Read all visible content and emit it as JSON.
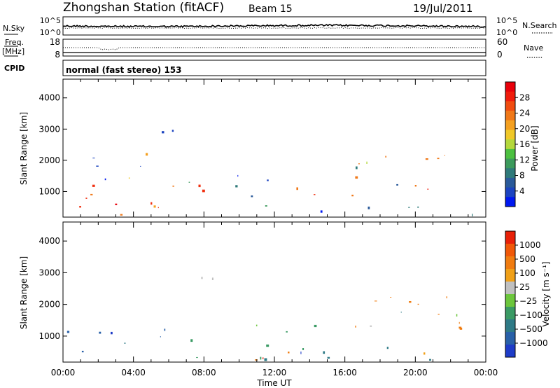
{
  "header": {
    "station": "Zhongshan Station (fitACF)",
    "beam": "Beam 15",
    "date": "19/Jul/2011"
  },
  "left_labels": {
    "nsky": "N.Sky",
    "freq": "Freq.",
    "freq_unit": "[MHz]",
    "cpid": "CPID"
  },
  "right_labels": {
    "nsearch": "N.Search",
    "nave": "Nave"
  },
  "cpid_text": "normal (fast stereo) 153",
  "chart_data": [
    {
      "panel": "noise",
      "type": "line",
      "left_axis": {
        "ticks": [
          "10^5",
          "10^0"
        ]
      },
      "right_axis": {
        "ticks": [
          "10^5",
          "10^0"
        ]
      },
      "series": [
        {
          "name": "N.Sky",
          "style": "solid"
        },
        {
          "name": "N.Search",
          "style": "dotted"
        }
      ]
    },
    {
      "panel": "frequency_nave",
      "type": "line",
      "left_axis": {
        "ticks": [
          "18",
          "8"
        ]
      },
      "right_axis": {
        "ticks": [
          "60",
          "0"
        ]
      },
      "series": [
        {
          "name": "Freq.",
          "style": "solid"
        },
        {
          "name": "Nave",
          "style": "dotted"
        }
      ]
    },
    {
      "panel": "power",
      "type": "heatmap",
      "ylabel": "Slant Range [km]",
      "ylim": [
        180,
        4600
      ],
      "yticks": [
        1000,
        2000,
        3000,
        4000
      ],
      "xlim_hours": [
        0,
        24
      ],
      "colorbar": {
        "label": "Power [dB]",
        "ticks": [
          "4",
          "8",
          "12",
          "16",
          "20",
          "24",
          "28"
        ],
        "colors": [
          "#0018f0",
          "#1c44c0",
          "#2a5a9a",
          "#2f7a7a",
          "#3c9a5c",
          "#4cc040",
          "#b4d83c",
          "#f0c828",
          "#f4a020",
          "#f07818",
          "#f04c10",
          "#f01c0c",
          "#e8000a"
        ]
      },
      "blobs": [
        {
          "t0": 0.0,
          "t1": 14.5,
          "r0": 250,
          "r1": 1300,
          "c": "#f03010"
        },
        {
          "t0": 0.0,
          "t1": 14.5,
          "r0": 1300,
          "r1": 1600,
          "c": "#3c9a5c"
        },
        {
          "t0": 14.5,
          "t1": 24.0,
          "r0": 250,
          "r1": 700,
          "c": "#2f7a7a"
        },
        {
          "t0": 5.5,
          "t1": 9.5,
          "r0": 2700,
          "r1": 3100,
          "c": "#1c44c0"
        },
        {
          "t0": 1.0,
          "t1": 7.5,
          "r0": 1800,
          "r1": 2400,
          "c": "#1c44c0"
        },
        {
          "t0": 16.3,
          "t1": 23.0,
          "r0": 800,
          "r1": 2300,
          "c": "#f07818"
        },
        {
          "t0": 16.3,
          "t1": 17.3,
          "r0": 1600,
          "r1": 2700,
          "c": "#b4d83c"
        }
      ]
    },
    {
      "panel": "velocity",
      "type": "heatmap",
      "ylabel": "Slant Range [km]",
      "ylim": [
        180,
        4600
      ],
      "yticks": [
        1000,
        2000,
        3000,
        4000
      ],
      "xlim_hours": [
        0,
        24
      ],
      "xticks": [
        "00:00",
        "04:00",
        "08:00",
        "12:00",
        "16:00",
        "20:00",
        "00:00"
      ],
      "xlabel": "Time UT",
      "colorbar": {
        "label": "Velocity [m s⁻¹]",
        "ticks": [
          "1000",
          "500",
          "100",
          "25",
          "−25",
          "−100",
          "−500",
          "−1000"
        ],
        "colors": [
          "#1e3cc8",
          "#2860a8",
          "#2e7a86",
          "#3a9a64",
          "#6cc63c",
          "#c0c0c0",
          "#f0a018",
          "#f07c10",
          "#f05808",
          "#e82008"
        ]
      },
      "blobs": [
        {
          "t0": 0.0,
          "t1": 6.0,
          "r0": 350,
          "r1": 1400,
          "c": "#2860a8"
        },
        {
          "t0": 6.0,
          "t1": 14.5,
          "r0": 250,
          "r1": 1400,
          "c": "#3a9a64"
        },
        {
          "t0": 10.5,
          "t1": 14.0,
          "r0": 250,
          "r1": 700,
          "c": "#f07c10"
        },
        {
          "t0": 14.5,
          "t1": 24.0,
          "r0": 250,
          "r1": 700,
          "c": "#2e7a86"
        },
        {
          "t0": 5.5,
          "t1": 9.0,
          "r0": 2600,
          "r1": 3100,
          "c": "#c0c0c0"
        },
        {
          "t0": 16.0,
          "t1": 23.0,
          "r0": 700,
          "r1": 2400,
          "c": "#f07c10"
        }
      ]
    }
  ]
}
